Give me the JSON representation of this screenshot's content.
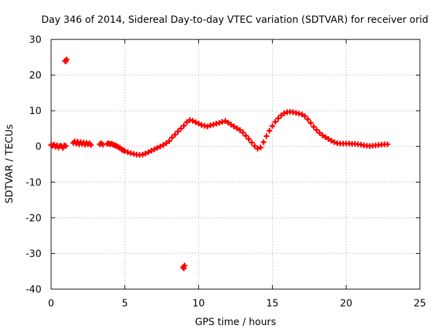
{
  "chart_data": {
    "type": "scatter",
    "title": "Day 346 of 2014, Sidereal Day-to-day VTEC variation (SDTVAR) for receiver orid",
    "xlabel": "GPS time / hours",
    "ylabel": "SDTVAR / TECUs",
    "xlim": [
      0,
      25
    ],
    "ylim": [
      -40,
      30
    ],
    "xticks": [
      0,
      5,
      10,
      15,
      20,
      25
    ],
    "yticks": [
      -40,
      -30,
      -20,
      -10,
      0,
      10,
      20,
      30
    ],
    "grid": true,
    "marker": "plus",
    "colors": {
      "series": "#ff0000",
      "grid": "#a0a0a0",
      "axis": "#000000"
    },
    "series": [
      {
        "name": "SDTVAR",
        "points": [
          [
            0.0,
            0.4
          ],
          [
            0.1,
            0.2
          ],
          [
            0.2,
            0.5
          ],
          [
            0.3,
            -0.1
          ],
          [
            0.4,
            0.3
          ],
          [
            0.5,
            -0.3
          ],
          [
            0.6,
            0.2
          ],
          [
            0.7,
            0.1
          ],
          [
            0.8,
            -0.4
          ],
          [
            0.9,
            0.3
          ],
          [
            1.0,
            0.1
          ],
          [
            0.95,
            24.0
          ],
          [
            1.05,
            24.4
          ],
          [
            1.0,
            23.8
          ],
          [
            1.5,
            1.0
          ],
          [
            1.6,
            1.4
          ],
          [
            1.7,
            0.8
          ],
          [
            1.8,
            1.3
          ],
          [
            1.9,
            0.6
          ],
          [
            2.0,
            1.2
          ],
          [
            2.1,
            0.7
          ],
          [
            2.2,
            1.1
          ],
          [
            2.3,
            0.5
          ],
          [
            2.4,
            1.0
          ],
          [
            2.5,
            0.6
          ],
          [
            2.6,
            0.9
          ],
          [
            2.7,
            0.4
          ],
          [
            3.3,
            0.6
          ],
          [
            3.4,
            0.9
          ],
          [
            3.5,
            0.5
          ],
          [
            3.8,
            0.7
          ],
          [
            3.9,
            0.9
          ],
          [
            4.0,
            0.6
          ],
          [
            4.1,
            0.8
          ],
          [
            4.2,
            0.5
          ],
          [
            4.3,
            0.3
          ],
          [
            4.4,
            0.2
          ],
          [
            4.5,
            0.0
          ],
          [
            4.6,
            -0.3
          ],
          [
            4.7,
            -0.5
          ],
          [
            4.8,
            -0.9
          ],
          [
            4.9,
            -1.1
          ],
          [
            5.0,
            -1.3
          ],
          [
            5.2,
            -1.6
          ],
          [
            5.4,
            -1.9
          ],
          [
            5.6,
            -2.1
          ],
          [
            5.8,
            -2.3
          ],
          [
            6.0,
            -2.4
          ],
          [
            6.2,
            -2.3
          ],
          [
            6.4,
            -2.0
          ],
          [
            6.6,
            -1.6
          ],
          [
            6.8,
            -1.2
          ],
          [
            7.0,
            -0.8
          ],
          [
            7.2,
            -0.4
          ],
          [
            7.4,
            0.0
          ],
          [
            7.6,
            0.4
          ],
          [
            7.8,
            0.9
          ],
          [
            8.0,
            1.5
          ],
          [
            8.2,
            2.5
          ],
          [
            8.4,
            3.3
          ],
          [
            8.6,
            4.2
          ],
          [
            8.8,
            5.0
          ],
          [
            9.0,
            5.8
          ],
          [
            8.95,
            -33.8
          ],
          [
            9.05,
            -33.4
          ],
          [
            9.0,
            -34.2
          ],
          [
            9.2,
            6.8
          ],
          [
            9.4,
            7.4
          ],
          [
            9.6,
            7.2
          ],
          [
            9.8,
            6.8
          ],
          [
            10.0,
            6.4
          ],
          [
            10.2,
            6.0
          ],
          [
            10.4,
            5.8
          ],
          [
            10.6,
            5.6
          ],
          [
            10.8,
            5.9
          ],
          [
            11.0,
            6.1
          ],
          [
            11.2,
            6.4
          ],
          [
            11.4,
            6.6
          ],
          [
            11.6,
            6.9
          ],
          [
            11.8,
            7.1
          ],
          [
            12.0,
            6.7
          ],
          [
            12.2,
            6.1
          ],
          [
            12.4,
            5.6
          ],
          [
            12.6,
            5.1
          ],
          [
            12.8,
            4.6
          ],
          [
            13.0,
            3.9
          ],
          [
            13.2,
            3.0
          ],
          [
            13.4,
            2.1
          ],
          [
            13.6,
            1.1
          ],
          [
            13.8,
            0.1
          ],
          [
            14.0,
            -0.6
          ],
          [
            14.2,
            -0.3
          ],
          [
            14.4,
            1.2
          ],
          [
            14.6,
            2.9
          ],
          [
            14.8,
            4.4
          ],
          [
            15.0,
            5.7
          ],
          [
            15.2,
            6.9
          ],
          [
            15.4,
            7.9
          ],
          [
            15.6,
            8.7
          ],
          [
            15.8,
            9.3
          ],
          [
            16.0,
            9.6
          ],
          [
            16.2,
            9.7
          ],
          [
            16.4,
            9.6
          ],
          [
            16.6,
            9.4
          ],
          [
            16.8,
            9.2
          ],
          [
            17.0,
            9.0
          ],
          [
            17.2,
            8.5
          ],
          [
            17.4,
            7.6
          ],
          [
            17.6,
            6.6
          ],
          [
            17.8,
            5.5
          ],
          [
            18.0,
            4.6
          ],
          [
            18.2,
            3.8
          ],
          [
            18.4,
            3.1
          ],
          [
            18.6,
            2.6
          ],
          [
            18.8,
            2.1
          ],
          [
            19.0,
            1.6
          ],
          [
            19.2,
            1.2
          ],
          [
            19.4,
            0.9
          ],
          [
            19.6,
            0.8
          ],
          [
            19.8,
            0.8
          ],
          [
            20.0,
            0.8
          ],
          [
            20.2,
            0.8
          ],
          [
            20.4,
            0.7
          ],
          [
            20.6,
            0.7
          ],
          [
            20.8,
            0.6
          ],
          [
            21.0,
            0.5
          ],
          [
            21.2,
            0.3
          ],
          [
            21.4,
            0.2
          ],
          [
            21.6,
            0.1
          ],
          [
            21.8,
            0.2
          ],
          [
            22.0,
            0.3
          ],
          [
            22.2,
            0.4
          ],
          [
            22.4,
            0.5
          ],
          [
            22.6,
            0.6
          ],
          [
            22.8,
            0.6
          ]
        ]
      }
    ]
  }
}
